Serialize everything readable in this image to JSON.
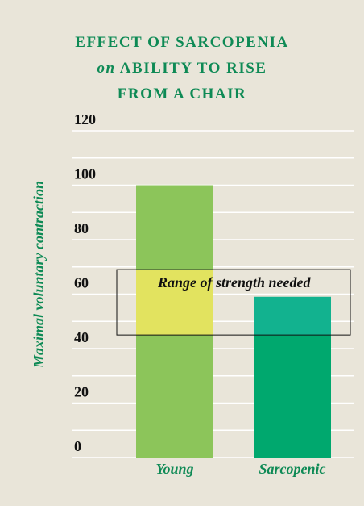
{
  "chart_data": {
    "type": "bar",
    "title": [
      "EFFECT OF SARCOPENIA",
      "on",
      "ABILITY TO RISE",
      "FROM A CHAIR"
    ],
    "y_axis_label": "Maximal voluntary contraction",
    "categories": [
      "Young",
      "Sarcopenic"
    ],
    "values": [
      100,
      59
    ],
    "colors": [
      "#8cc55a",
      "#00a86e"
    ],
    "highlight_colors": [
      "#e2e35f",
      "#12b28f"
    ],
    "ylim": [
      0,
      120
    ],
    "yticks": [
      0,
      20,
      40,
      60,
      80,
      100,
      120
    ],
    "yminorticks": [
      10,
      30,
      50,
      70,
      90,
      110
    ],
    "grid": true,
    "annotation": {
      "label": "Range of strength needed",
      "range": [
        45,
        69
      ]
    }
  }
}
